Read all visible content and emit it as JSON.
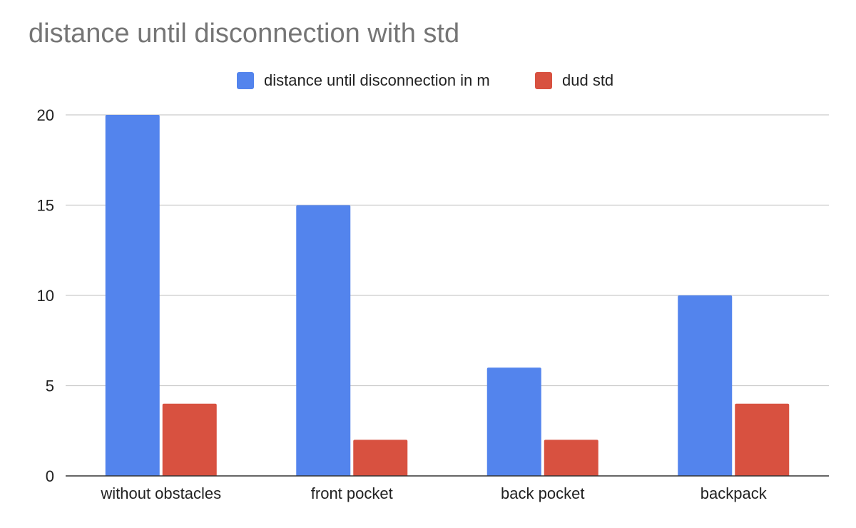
{
  "chart_data": {
    "type": "bar",
    "title": "distance until disconnection with std",
    "xlabel": "",
    "ylabel": "",
    "categories": [
      "without obstacles",
      "front pocket",
      "back pocket",
      "backpack"
    ],
    "series": [
      {
        "name": "distance until disconnection in m",
        "values": [
          20,
          15,
          6,
          10
        ],
        "color": "#5384ED"
      },
      {
        "name": "dud std",
        "values": [
          4,
          2,
          2,
          4
        ],
        "color": "#D85140"
      }
    ],
    "ylim": [
      0,
      20
    ],
    "yticks": [
      "0",
      "5",
      "10",
      "15",
      "20"
    ],
    "grid": true,
    "legend_position": "top-center"
  }
}
